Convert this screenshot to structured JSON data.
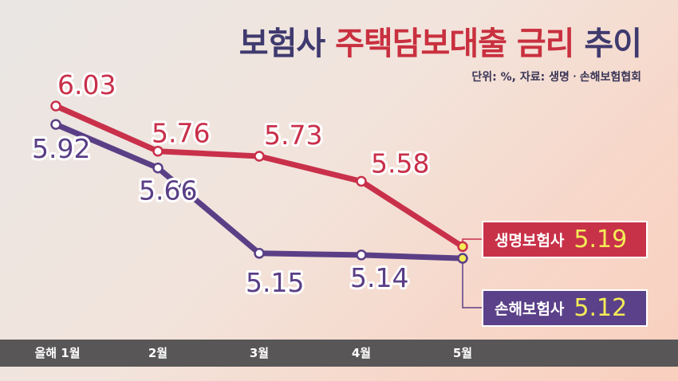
{
  "title": {
    "part1": "보험사",
    "part2": "주택담보대출 금리",
    "part3": "추이"
  },
  "source_note": "단위: %, 자료: 생명ㆍ손해보험협회",
  "chart_data": {
    "type": "line",
    "categories": [
      "올해 1월",
      "2월",
      "3월",
      "4월",
      "5월"
    ],
    "series": [
      {
        "name": "생명보험사",
        "values": [
          6.03,
          5.76,
          5.73,
          5.58,
          5.19
        ],
        "color": "#c9304a"
      },
      {
        "name": "손해보험사",
        "values": [
          5.92,
          5.66,
          5.15,
          5.14,
          5.12
        ],
        "color": "#5a3f86"
      }
    ],
    "data_labels": {
      "생명보험사": [
        "6.03",
        "5.76",
        "5.73",
        "5.58"
      ],
      "손해보험사": [
        "5.92",
        "5.66",
        "5.15",
        "5.14"
      ]
    },
    "grid": false,
    "legend": "right"
  },
  "legend": {
    "life": {
      "name": "생명보험사",
      "value": "5.19"
    },
    "nonlife": {
      "name": "손해보험사",
      "value": "5.12"
    }
  },
  "colors": {
    "red": "#c9304a",
    "purple": "#5a3f86",
    "last_point": "#f4ec57",
    "axis_bar": "#585657"
  }
}
